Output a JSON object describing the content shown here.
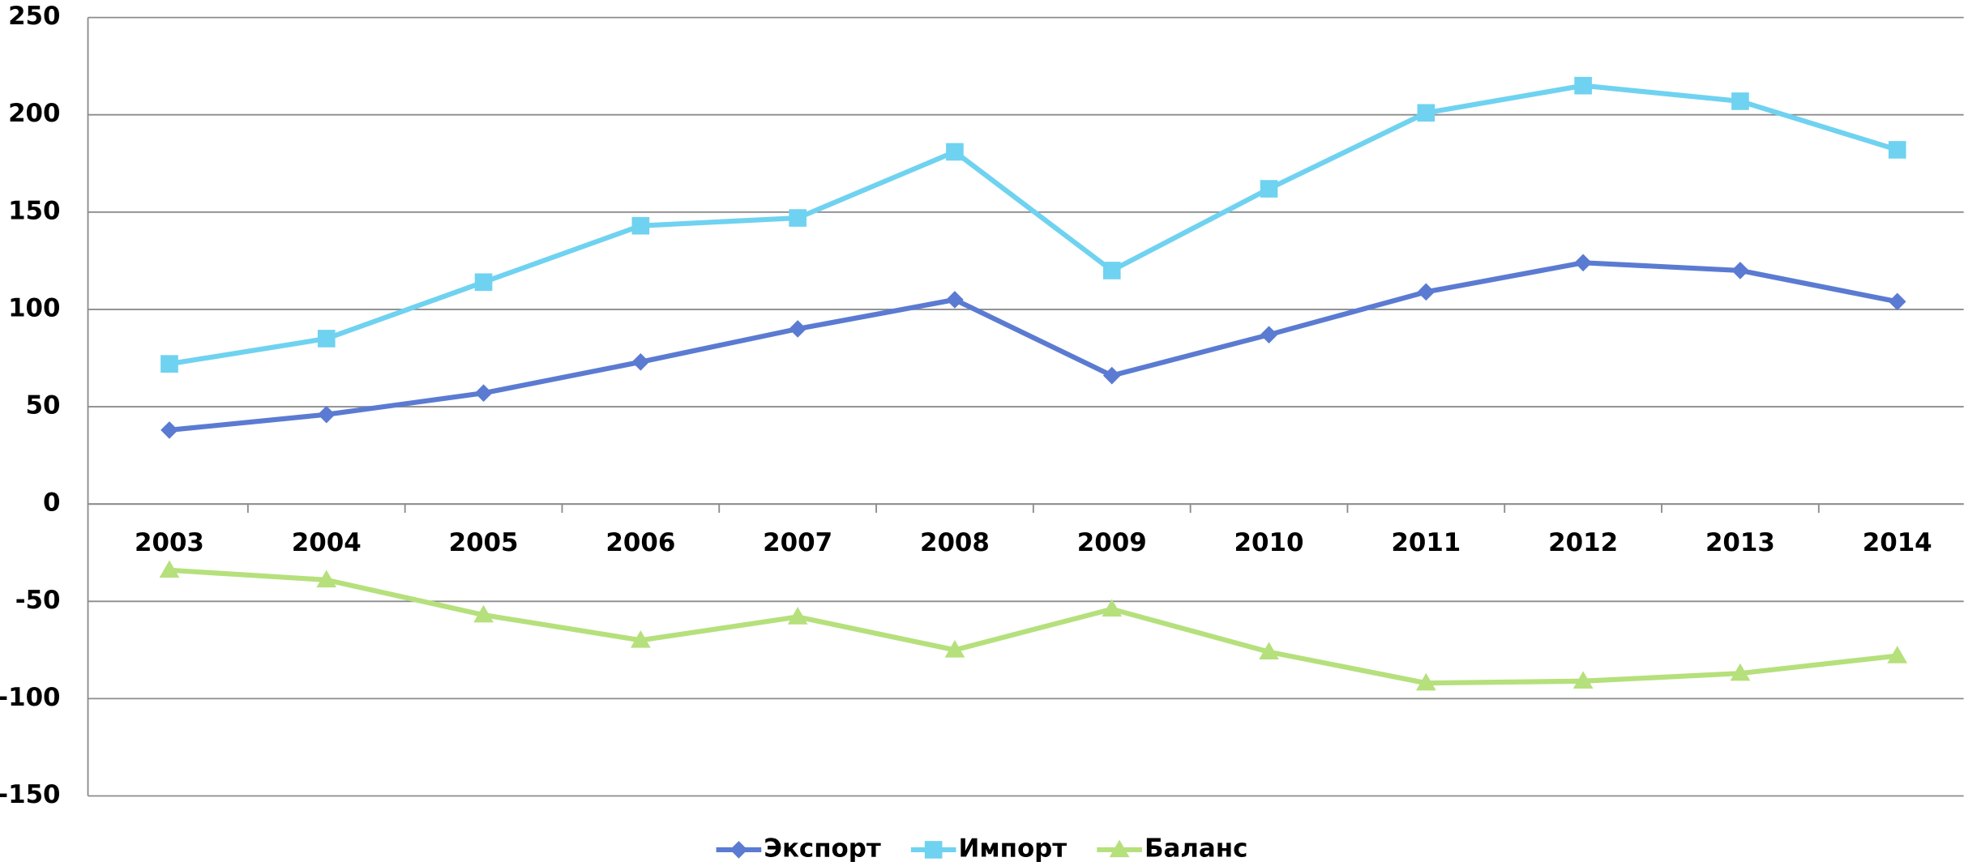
{
  "chart_data": {
    "type": "line",
    "categories": [
      "2003",
      "2004",
      "2005",
      "2006",
      "2007",
      "2008",
      "2009",
      "2010",
      "2011",
      "2012",
      "2013",
      "2014"
    ],
    "series": [
      {
        "name": "Экспорт",
        "color": "#5b7bd2",
        "marker": "diamond",
        "values": [
          38,
          46,
          57,
          73,
          90,
          105,
          66,
          87,
          109,
          124,
          120,
          104
        ]
      },
      {
        "name": "Импорт",
        "color": "#6fd2f0",
        "marker": "square",
        "values": [
          72,
          85,
          114,
          143,
          147,
          181,
          120,
          162,
          201,
          215,
          207,
          182
        ]
      },
      {
        "name": "Баланс",
        "color": "#b5e07c",
        "marker": "triangle",
        "values": [
          -34,
          -39,
          -57,
          -70,
          -58,
          -75,
          -54,
          -76,
          -92,
          -91,
          -87,
          -78
        ]
      }
    ],
    "ylim": [
      -150,
      250
    ],
    "yticks": [
      -150,
      -100,
      -50,
      0,
      50,
      100,
      150,
      200,
      250
    ],
    "grid": true,
    "legend": "bottom"
  }
}
